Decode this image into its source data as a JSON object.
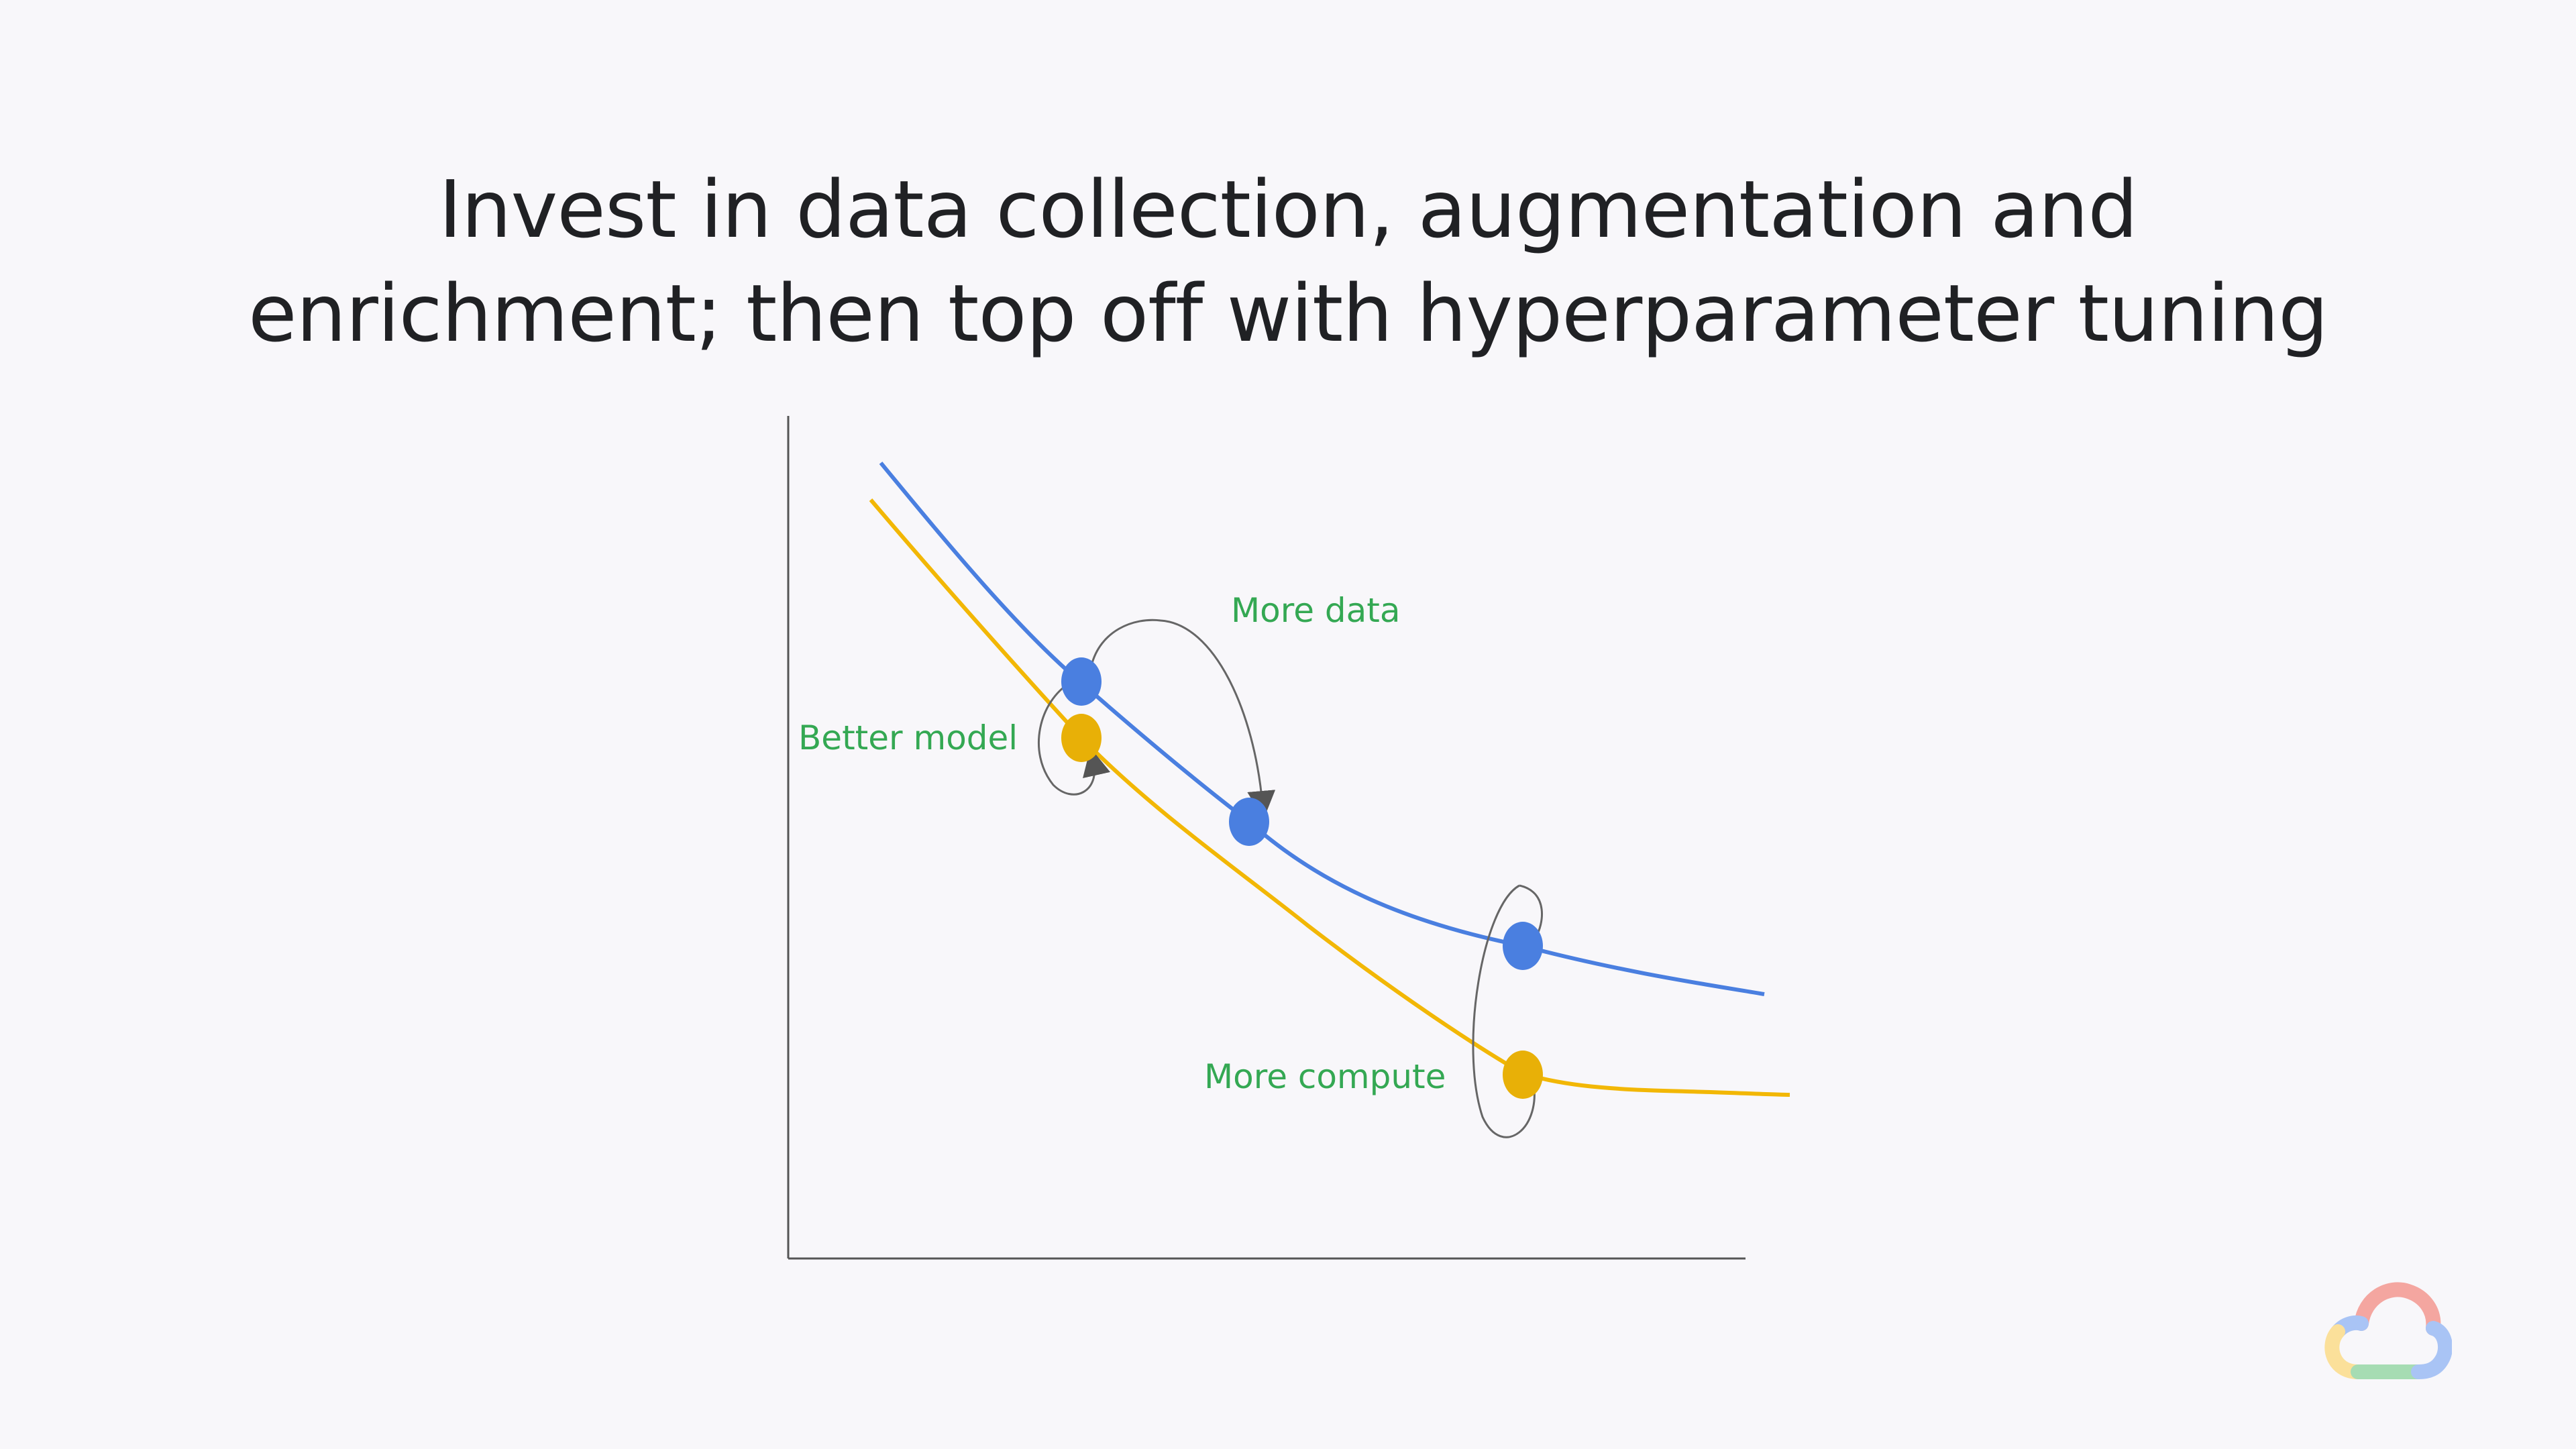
{
  "slide": {
    "title_line1": "Invest in data collection, augmentation and",
    "title_line2": "enrichment; then top off with hyperparameter tuning"
  },
  "diagram": {
    "labels": {
      "more_data": "More data",
      "better_model": "Better model",
      "more_compute": "More compute"
    },
    "curves": [
      {
        "id": "blue",
        "color": "#4a7fe0"
      },
      {
        "id": "yellow",
        "color": "#f2b705"
      }
    ],
    "markers": [
      {
        "curve": "blue",
        "color": "#4a7fe0"
      },
      {
        "curve": "blue",
        "color": "#4a7fe0"
      },
      {
        "curve": "blue",
        "color": "#4a7fe0"
      },
      {
        "curve": "yellow",
        "color": "#e8b007"
      },
      {
        "curve": "yellow",
        "color": "#e8b007"
      }
    ]
  },
  "logo": {
    "icon": "google-cloud-icon"
  }
}
